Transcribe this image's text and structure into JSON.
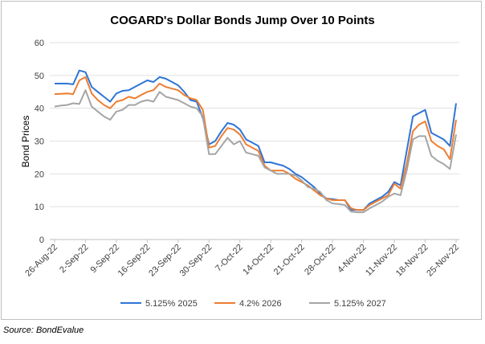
{
  "chart_data": {
    "type": "line",
    "title": "COGARD's Dollar Bonds Jump Over 10 Points",
    "y_label": "Bond Prices",
    "x": [
      "26-Aug-22",
      "29-Aug-22",
      "30-Aug-22",
      "31-Aug-22",
      "1-Sep-22",
      "2-Sep-22",
      "5-Sep-22",
      "6-Sep-22",
      "7-Sep-22",
      "8-Sep-22",
      "9-Sep-22",
      "12-Sep-22",
      "13-Sep-22",
      "14-Sep-22",
      "15-Sep-22",
      "16-Sep-22",
      "19-Sep-22",
      "20-Sep-22",
      "21-Sep-22",
      "22-Sep-22",
      "23-Sep-22",
      "26-Sep-22",
      "27-Sep-22",
      "28-Sep-22",
      "29-Sep-22",
      "30-Sep-22",
      "3-Oct-22",
      "4-Oct-22",
      "5-Oct-22",
      "6-Oct-22",
      "7-Oct-22",
      "10-Oct-22",
      "11-Oct-22",
      "12-Oct-22",
      "13-Oct-22",
      "14-Oct-22",
      "17-Oct-22",
      "18-Oct-22",
      "19-Oct-22",
      "20-Oct-22",
      "21-Oct-22",
      "24-Oct-22",
      "25-Oct-22",
      "26-Oct-22",
      "27-Oct-22",
      "28-Oct-22",
      "31-Oct-22",
      "1-Nov-22",
      "2-Nov-22",
      "3-Nov-22",
      "4-Nov-22",
      "7-Nov-22",
      "8-Nov-22",
      "9-Nov-22",
      "10-Nov-22",
      "11-Nov-22",
      "14-Nov-22",
      "15-Nov-22",
      "16-Nov-22",
      "17-Nov-22",
      "18-Nov-22",
      "21-Nov-22",
      "22-Nov-22",
      "23-Nov-22",
      "24-Nov-22",
      "25-Nov-22"
    ],
    "xticks": [
      "26-Aug-22",
      "2-Sep-22",
      "9-Sep-22",
      "16-Sep-22",
      "23-Sep-22",
      "30-Sep-22",
      "7-Oct-22",
      "14-Oct-22",
      "21-Oct-22",
      "28-Oct-22",
      "4-Nov-22",
      "11-Nov-22",
      "18-Nov-22",
      "25-Nov-22"
    ],
    "series": [
      {
        "name": "5.125% 2025",
        "color": "#2e75d6",
        "values": [
          47.5,
          47.5,
          47.5,
          47.3,
          51.5,
          51,
          46.5,
          45,
          43.5,
          42,
          44.5,
          45.3,
          45.5,
          46.5,
          47.5,
          48.5,
          48,
          49.5,
          49,
          48,
          47,
          45,
          42.5,
          42,
          37,
          29,
          30,
          33,
          35.5,
          35,
          33.5,
          30.5,
          29.5,
          28.5,
          23.5,
          23.5,
          23,
          22.5,
          21.5,
          20,
          19,
          17.5,
          16,
          14,
          12.5,
          12.3,
          12,
          12,
          9,
          9,
          9,
          11,
          12,
          13,
          14.5,
          17.5,
          16.5,
          27,
          37.5,
          38.5,
          39.5,
          32.5,
          31.5,
          30.5,
          28.5,
          41.5
        ]
      },
      {
        "name": "4.2% 2026",
        "color": "#ed7d31",
        "values": [
          44.3,
          44.4,
          44.5,
          44.3,
          48.5,
          49.5,
          44.5,
          42.5,
          41,
          40,
          42,
          42.5,
          43.5,
          43,
          44,
          45,
          45.5,
          47.5,
          46.5,
          46,
          45.5,
          44,
          43,
          42.5,
          39.5,
          28,
          28.5,
          31.5,
          34,
          33.5,
          32,
          29,
          28,
          27,
          22.5,
          21,
          21,
          21,
          20,
          18.5,
          17.5,
          16.5,
          15,
          13.5,
          12.5,
          12,
          12,
          12,
          9.5,
          9,
          9,
          10.5,
          11.5,
          12.5,
          13.5,
          17,
          15.5,
          23,
          33,
          35,
          36,
          30,
          28.5,
          27.5,
          24.5,
          36.5
        ]
      },
      {
        "name": "5.125% 2027",
        "color": "#a5a5a5",
        "values": [
          40.5,
          40.8,
          41,
          41.5,
          41.3,
          45.5,
          40.5,
          39,
          37.5,
          36.5,
          39,
          39.5,
          41,
          41,
          42,
          42.5,
          42,
          45,
          43.5,
          43,
          42.5,
          41.5,
          40.5,
          40,
          37.5,
          26,
          26,
          28.5,
          31,
          29,
          30,
          26.5,
          26,
          25.5,
          22,
          21,
          20,
          20,
          20,
          19.5,
          18,
          16,
          15.5,
          14.5,
          12,
          11,
          10.8,
          10.5,
          8.5,
          8.3,
          8.3,
          9.5,
          10.5,
          11.5,
          13,
          14,
          13.5,
          21,
          30.5,
          31.5,
          31.5,
          25.5,
          24,
          23,
          21.5,
          32
        ]
      }
    ],
    "ylim": [
      0,
      60
    ],
    "yticks": [
      0,
      10,
      20,
      30,
      40,
      50,
      60
    ],
    "grid": true,
    "legend": "bottom"
  },
  "source": "Source: BondEvalue"
}
